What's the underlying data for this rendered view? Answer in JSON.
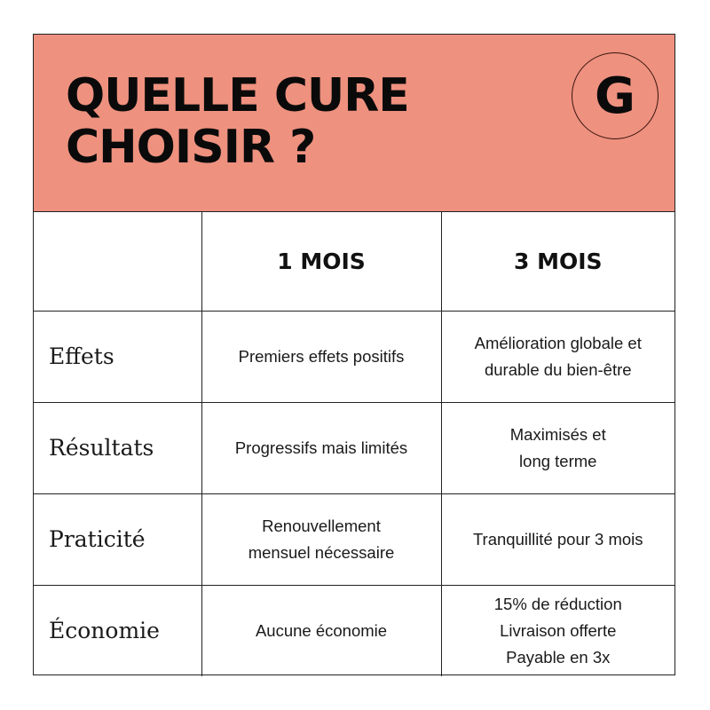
{
  "header": {
    "title_line1": "QUELLE CURE",
    "title_line2": "CHOISIR ?",
    "logo_letter": "G",
    "background_color": "#ee917f"
  },
  "table": {
    "columns": [
      "",
      "1 MOIS",
      "3 MOIS"
    ],
    "rows": [
      {
        "label": "Effets",
        "one_month": [
          "Premiers effets positifs"
        ],
        "three_months": [
          "Amélioration globale et",
          "durable du bien-être"
        ]
      },
      {
        "label": "Résultats",
        "one_month": [
          "Progressifs mais limités"
        ],
        "three_months": [
          "Maximisés et",
          "long terme"
        ]
      },
      {
        "label": "Praticité",
        "one_month": [
          "Renouvellement",
          "mensuel nécessaire"
        ],
        "three_months": [
          "Tranquillité pour 3 mois"
        ]
      },
      {
        "label": "Économie",
        "one_month": [
          "Aucune économie"
        ],
        "three_months": [
          "15% de réduction",
          "Livraison offerte",
          "Payable en 3x"
        ]
      }
    ]
  }
}
